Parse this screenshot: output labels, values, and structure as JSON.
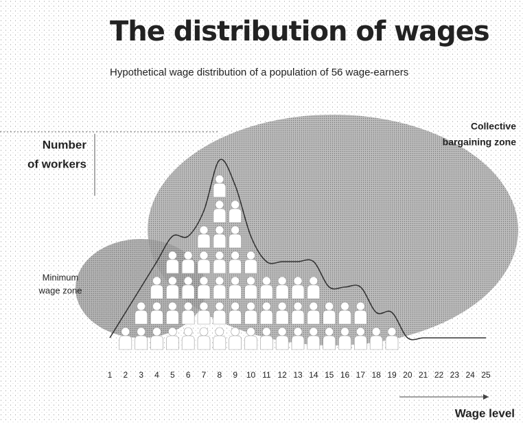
{
  "chart_data": {
    "type": "pictogram",
    "title": "The distribution of wages",
    "subtitle": "Hypothetical wage distribution of a population of 56 wage-earners",
    "y_label": [
      "Number",
      "of workers"
    ],
    "x_label": "Wage level",
    "annotations": [
      [
        "Minimum",
        "wage zone"
      ],
      [
        "Collective",
        "bargaining zone"
      ]
    ],
    "x": [
      1,
      2,
      3,
      4,
      5,
      6,
      7,
      8,
      9,
      10,
      11,
      12,
      13,
      14,
      15,
      16,
      17,
      18,
      19,
      20,
      21,
      22,
      23,
      24,
      25
    ],
    "values": [
      0,
      1,
      2,
      3,
      4,
      4,
      5,
      7,
      6,
      4,
      3,
      3,
      3,
      3,
      2,
      2,
      2,
      1,
      1,
      0,
      0,
      0,
      0,
      0,
      0
    ],
    "color": "#ffffff"
  }
}
